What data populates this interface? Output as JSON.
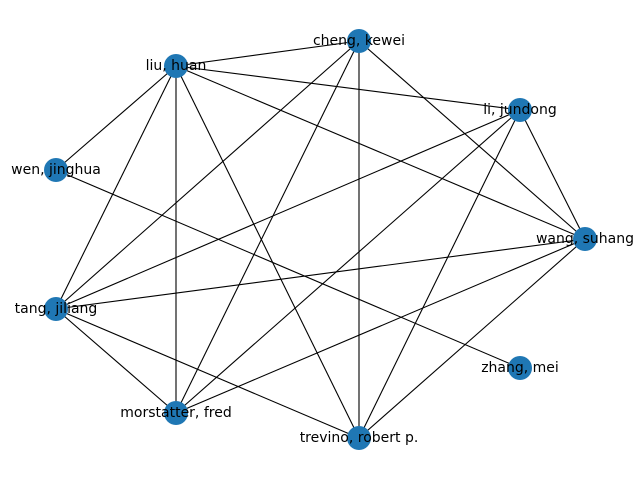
{
  "graph": {
    "node_color": "#1f77b4",
    "edge_color": "#000000",
    "nodes": [
      {
        "id": "liu",
        "label": "liu, huan"
      },
      {
        "id": "cheng",
        "label": "cheng, kewei"
      },
      {
        "id": "li",
        "label": "li, jundong"
      },
      {
        "id": "wen",
        "label": "wen, jinghua"
      },
      {
        "id": "wang",
        "label": "wang, suhang"
      },
      {
        "id": "tang",
        "label": "tang, jiliang"
      },
      {
        "id": "zhang",
        "label": "zhang, mei"
      },
      {
        "id": "morstatter",
        "label": "morstatter, fred"
      },
      {
        "id": "trevino",
        "label": "trevino, robert p."
      }
    ],
    "edges": [
      [
        "liu",
        "cheng"
      ],
      [
        "liu",
        "li"
      ],
      [
        "liu",
        "wen"
      ],
      [
        "liu",
        "wang"
      ],
      [
        "liu",
        "tang"
      ],
      [
        "liu",
        "morstatter"
      ],
      [
        "liu",
        "trevino"
      ],
      [
        "cheng",
        "wang"
      ],
      [
        "cheng",
        "tang"
      ],
      [
        "cheng",
        "morstatter"
      ],
      [
        "cheng",
        "trevino"
      ],
      [
        "li",
        "wang"
      ],
      [
        "li",
        "tang"
      ],
      [
        "li",
        "morstatter"
      ],
      [
        "li",
        "trevino"
      ],
      [
        "wen",
        "zhang"
      ],
      [
        "wang",
        "tang"
      ],
      [
        "wang",
        "morstatter"
      ],
      [
        "wang",
        "trevino"
      ],
      [
        "tang",
        "morstatter"
      ],
      [
        "tang",
        "trevino"
      ]
    ]
  }
}
